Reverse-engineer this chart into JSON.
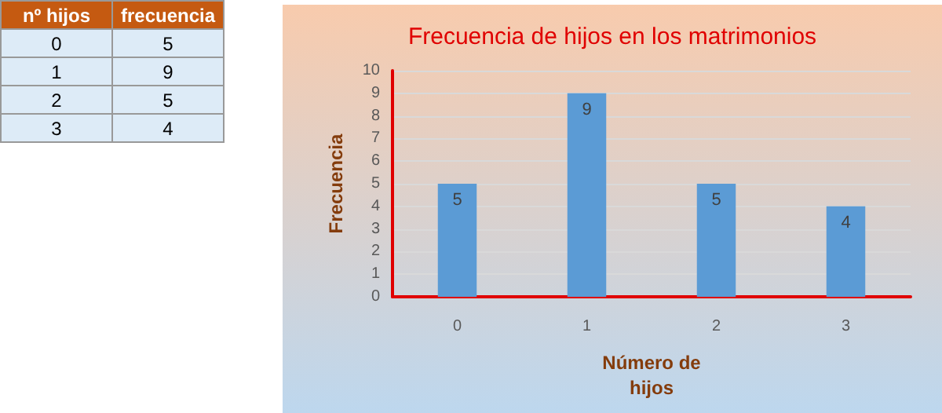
{
  "chart_data": {
    "type": "bar",
    "title": "Frecuencia de hijos en los matrimonios",
    "xlabel": "Número de\nhijos",
    "ylabel": "Frecuencia",
    "annotations": [
      "nº hijos",
      "frecuencia"
    ],
    "categories": [
      "0",
      "1",
      "2",
      "3"
    ],
    "values": [
      5,
      9,
      5,
      4
    ],
    "color": "#5b9bd5",
    "ylim": [
      0,
      10
    ],
    "yticks": [
      0,
      1,
      2,
      3,
      4,
      5,
      6,
      7,
      8,
      9,
      10
    ],
    "grid": "y",
    "value_labels": [
      "5",
      "9",
      "5",
      "4"
    ]
  }
}
